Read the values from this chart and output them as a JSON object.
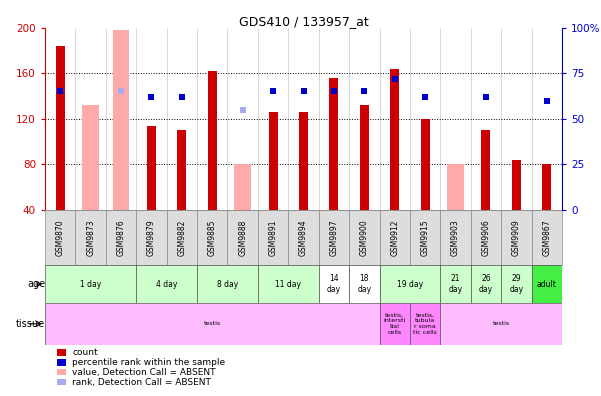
{
  "title": "GDS410 / 133957_at",
  "samples": [
    "GSM9870",
    "GSM9873",
    "GSM9876",
    "GSM9879",
    "GSM9882",
    "GSM9885",
    "GSM9888",
    "GSM9891",
    "GSM9894",
    "GSM9897",
    "GSM9900",
    "GSM9912",
    "GSM9915",
    "GSM9903",
    "GSM9906",
    "GSM9909",
    "GSM9867"
  ],
  "count_values": [
    184,
    null,
    null,
    114,
    110,
    162,
    null,
    126,
    126,
    156,
    132,
    164,
    120,
    null,
    110,
    84,
    80
  ],
  "count_absent_values": [
    null,
    132,
    198,
    null,
    null,
    null,
    80,
    null,
    null,
    null,
    null,
    null,
    null,
    80,
    null,
    null,
    null
  ],
  "percentile_rank": [
    65,
    null,
    null,
    62,
    62,
    null,
    null,
    65,
    65,
    65,
    65,
    72,
    62,
    null,
    62,
    null,
    60
  ],
  "percentile_rank_absent": [
    null,
    null,
    65,
    null,
    null,
    null,
    55,
    null,
    null,
    null,
    null,
    null,
    null,
    null,
    null,
    null,
    null
  ],
  "ylim_left": [
    40,
    200
  ],
  "ylim_right": [
    0,
    100
  ],
  "yticks_left": [
    40,
    80,
    120,
    160,
    200
  ],
  "yticks_right": [
    0,
    25,
    50,
    75,
    100
  ],
  "age_groups": [
    {
      "label": "1 day",
      "indices": [
        0,
        1,
        2
      ],
      "color": "#ccffcc"
    },
    {
      "label": "4 day",
      "indices": [
        3,
        4
      ],
      "color": "#ccffcc"
    },
    {
      "label": "8 day",
      "indices": [
        5,
        6
      ],
      "color": "#ccffcc"
    },
    {
      "label": "11 day",
      "indices": [
        7,
        8
      ],
      "color": "#ccffcc"
    },
    {
      "label": "14\nday",
      "indices": [
        9
      ],
      "color": "#ffffff"
    },
    {
      "label": "18\nday",
      "indices": [
        10
      ],
      "color": "#ffffff"
    },
    {
      "label": "19 day",
      "indices": [
        11,
        12
      ],
      "color": "#ccffcc"
    },
    {
      "label": "21\nday",
      "indices": [
        13
      ],
      "color": "#ccffcc"
    },
    {
      "label": "26\nday",
      "indices": [
        14
      ],
      "color": "#ccffcc"
    },
    {
      "label": "29\nday",
      "indices": [
        15
      ],
      "color": "#ccffcc"
    },
    {
      "label": "adult",
      "indices": [
        16
      ],
      "color": "#44ee44"
    }
  ],
  "tissue_groups": [
    {
      "label": "testis",
      "indices": [
        0,
        1,
        2,
        3,
        4,
        5,
        6,
        7,
        8,
        9,
        10
      ],
      "color": "#ffbbff"
    },
    {
      "label": "testis,\nintersti\ntial\ncells",
      "indices": [
        11
      ],
      "color": "#ff88ff"
    },
    {
      "label": "testis,\ntubula\nr soma\ntic cells",
      "indices": [
        12
      ],
      "color": "#ff88ff"
    },
    {
      "label": "testis",
      "indices": [
        13,
        14,
        15,
        16
      ],
      "color": "#ffbbff"
    }
  ],
  "bar_color": "#cc0000",
  "bar_absent_color": "#ffaaaa",
  "dot_color": "#0000cc",
  "dot_absent_color": "#aaaaee",
  "bg_color": "#ffffff",
  "tick_bg_color": "#dddddd",
  "axis_left_color": "#cc0000",
  "axis_right_color": "#0000cc",
  "legend_items": [
    {
      "color": "#cc0000",
      "label": "count"
    },
    {
      "color": "#0000cc",
      "label": "percentile rank within the sample"
    },
    {
      "color": "#ffaaaa",
      "label": "value, Detection Call = ABSENT"
    },
    {
      "color": "#aaaaee",
      "label": "rank, Detection Call = ABSENT"
    }
  ]
}
